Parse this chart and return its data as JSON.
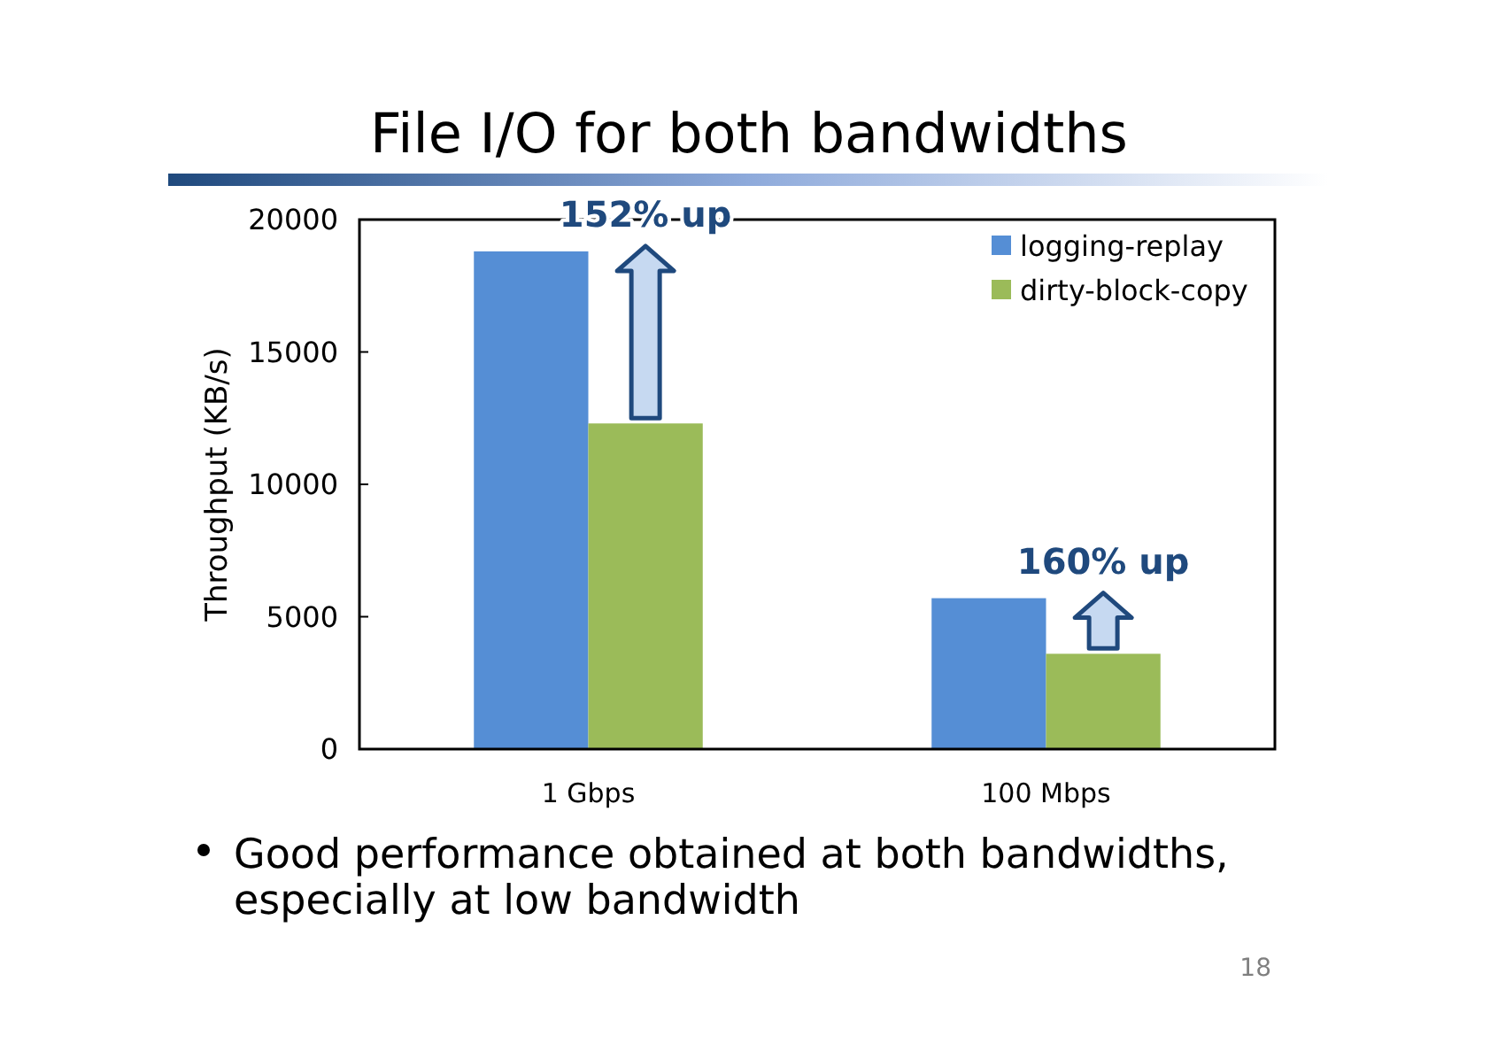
{
  "chart_data": {
    "type": "bar",
    "title": "File I/O for both bandwidths",
    "ylabel": "Throughput (KB/s)",
    "categories": [
      "1 Gbps",
      "100 Mbps"
    ],
    "series": [
      {
        "name": "logging-replay",
        "color": "#558ed5",
        "values": [
          18800,
          5700
        ]
      },
      {
        "name": "dirty-block-copy",
        "color": "#9bbb59",
        "values": [
          12300,
          3600
        ]
      }
    ],
    "ylim": [
      0,
      20000
    ],
    "yticks": [
      0,
      5000,
      10000,
      15000,
      20000
    ],
    "legend": "top right",
    "annotations": [
      "152% up",
      "160% up",
      "Good performance obtained at both bandwidths, especially at low bandwidth",
      "18"
    ]
  }
}
